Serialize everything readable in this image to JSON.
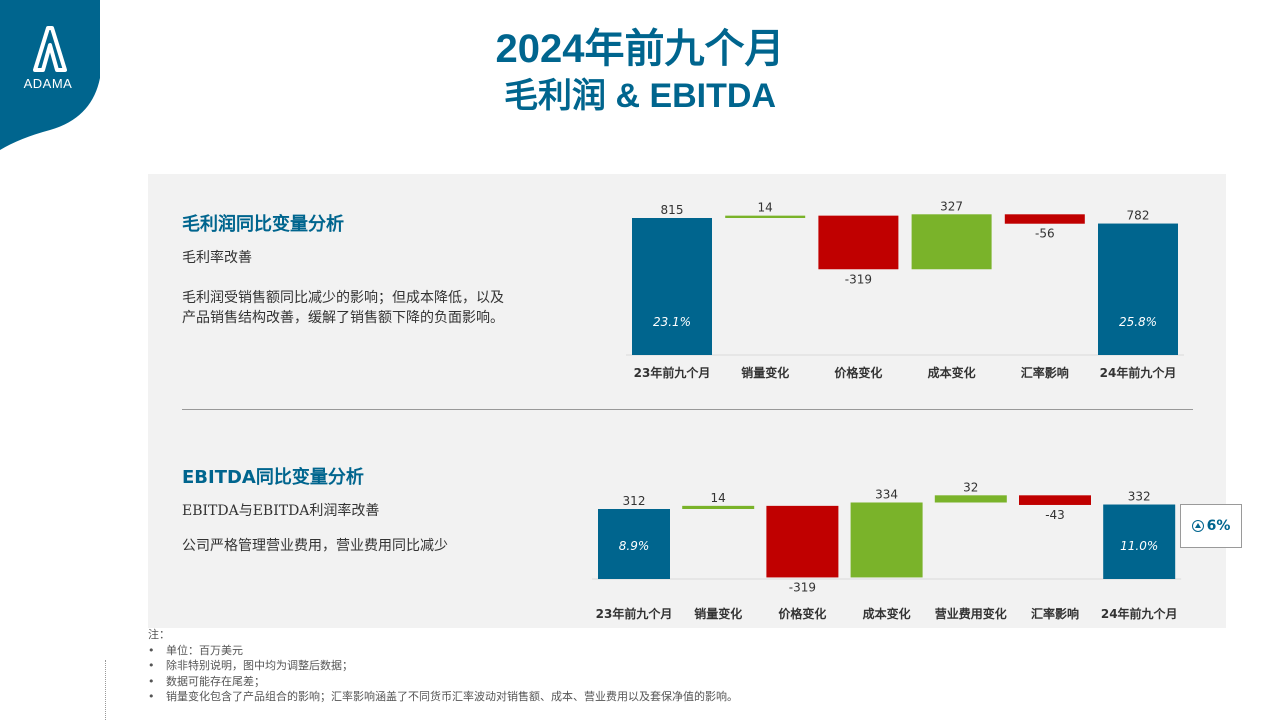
{
  "logo": {
    "text": "ADAMA"
  },
  "title": {
    "line1": "2024年前九个月",
    "line2": "毛利润 & EBITDA"
  },
  "gross": {
    "heading": "毛利润同比变量分析",
    "subheading": "毛利率改善",
    "body": [
      "毛利润受销售额同比减少的影响；但成本降低，以及",
      "产品销售结构改善，缓解了销售额下降的负面影响。"
    ]
  },
  "ebitda": {
    "heading": "EBITDA同比变量分析",
    "subheading": "EBITDA与EBITDA利润率改善",
    "body": "公司严格管理营业费用，营业费用同比减少",
    "callout": "6%"
  },
  "notes": {
    "heading": "注：",
    "items": [
      "单位：百万美元",
      "除非特别说明，图中均为调整后数据；",
      "数据可能存在尾差；",
      "销量变化包含了产品组合的影响；汇率影响涵盖了不同货币汇率波动对销售额、成本、营业费用以及套保净值的影响。"
    ]
  },
  "colors": {
    "total": "#00658e",
    "negative": "#c00000",
    "positive": "#7ab32a",
    "title": "#00658e"
  },
  "chart_data": [
    {
      "type": "waterfall",
      "title": "毛利润同比变量分析",
      "categories": [
        "23年前九个月",
        "销量变化",
        "价格变化",
        "成本变化",
        "汇率影响",
        "24年前九个月"
      ],
      "values": [
        815,
        14,
        -319,
        327,
        -56,
        782
      ],
      "labels": [
        "815",
        "14",
        "-319",
        "327",
        "-56",
        "782"
      ],
      "kinds": [
        "total",
        "positive",
        "negative",
        "positive",
        "negative",
        "total"
      ],
      "inner_labels": [
        "23.1%",
        "",
        "",
        "",
        "",
        "25.8%"
      ]
    },
    {
      "type": "waterfall",
      "title": "EBITDA同比变量分析",
      "categories": [
        "23年前九个月",
        "销量变化",
        "价格变化",
        "成本变化",
        "营业费用变化",
        "汇率影响",
        "24年前九个月"
      ],
      "values": [
        312,
        14,
        -319,
        334,
        32,
        -43,
        332
      ],
      "labels": [
        "312",
        "14",
        "-319",
        "334",
        "32",
        "-43",
        "332"
      ],
      "kinds": [
        "total",
        "positive",
        "negative",
        "positive",
        "positive",
        "negative",
        "total"
      ],
      "inner_labels": [
        "8.9%",
        "",
        "",
        "",
        "",
        "",
        "11.0%"
      ]
    }
  ]
}
